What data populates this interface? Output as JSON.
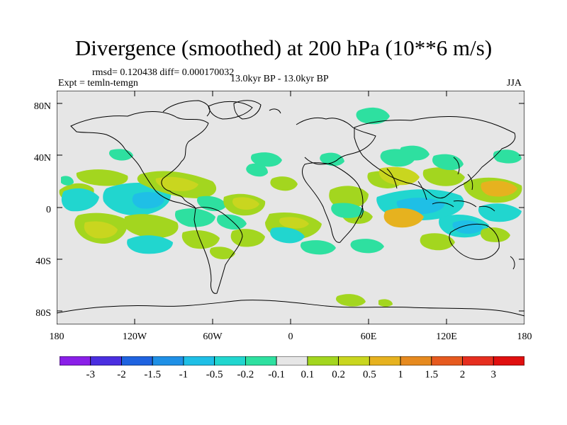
{
  "title": "Divergence (smoothed) at 200 hPa (10**6 m/s)",
  "stats": "rmsd= 0.120438 diff= 0.000170032",
  "experiment": "Expt = temln-temgn",
  "period": "13.0kyr BP - 13.0kyr BP",
  "season": "JJA",
  "y_axis_labels": [
    "80N",
    "40N",
    "0",
    "40S",
    "80S"
  ],
  "x_axis_labels": [
    "180",
    "120W",
    "60W",
    "0",
    "60E",
    "120E",
    "180"
  ],
  "colorbar": {
    "labels": [
      "-3",
      "-2",
      "-1.5",
      "-1",
      "-0.5",
      "-0.2",
      "-0.1",
      "0.1",
      "0.2",
      "0.5",
      "1",
      "1.5",
      "2",
      "3"
    ],
    "colors": [
      "#8a1fe8",
      "#4a2ee0",
      "#1f63e0",
      "#1f90e6",
      "#1fbfe6",
      "#21d6cf",
      "#2ee0a0",
      "#e6e6e6",
      "#a3d61f",
      "#c9d61f",
      "#e6b21f",
      "#e68a1f",
      "#e65a1f",
      "#e62e1f",
      "#e00f0f"
    ]
  },
  "colors": {
    "background": "#e6e6e6",
    "coast": "#000000"
  }
}
